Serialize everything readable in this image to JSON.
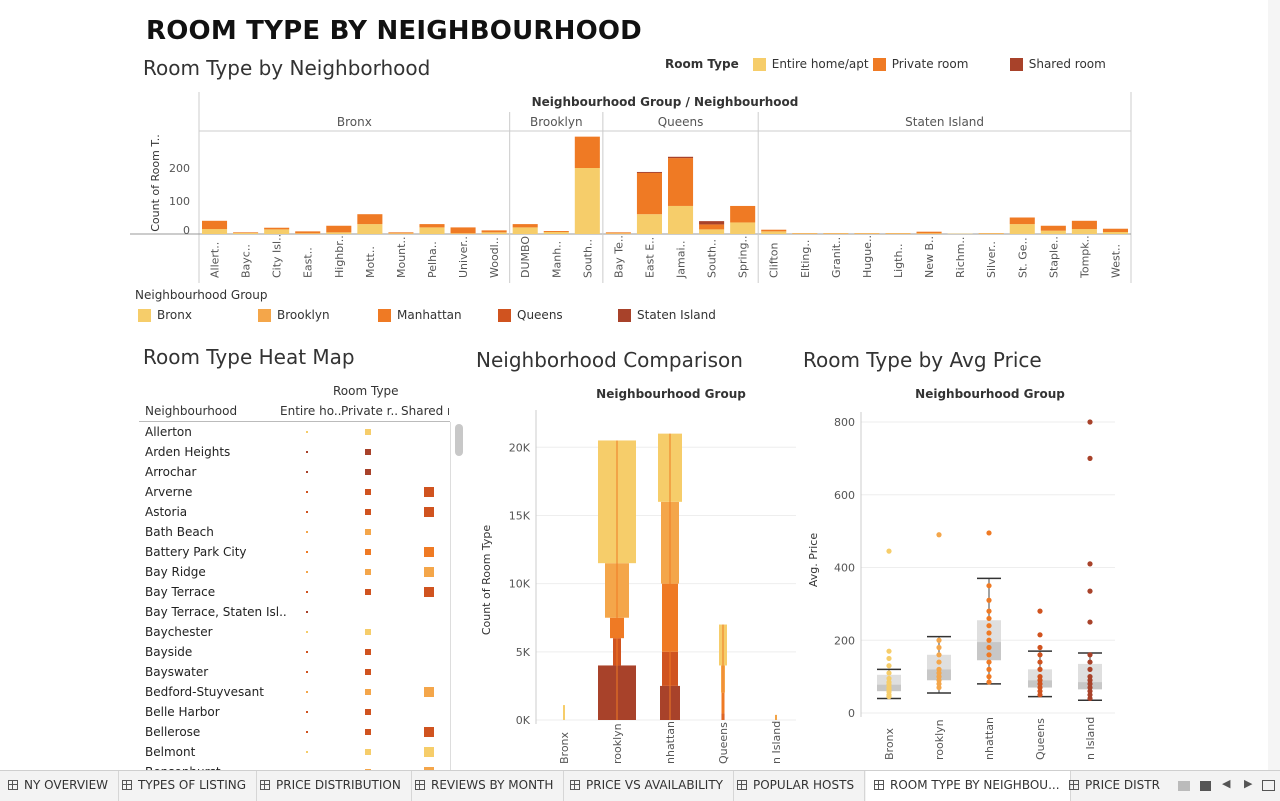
{
  "dashboard": {
    "title": "ROOM TYPE BY NEIGHBOURHOOD"
  },
  "bar_section": {
    "title": "Room Type by Neighborhood",
    "legend_title": "Room Type",
    "legend_items": [
      {
        "label": "Entire home/apt",
        "color": "#f6cd6a"
      },
      {
        "label": "Private room",
        "color": "#ef7a24"
      },
      {
        "label": "Shared room",
        "color": "#a8422a"
      }
    ],
    "header": "Neighbourhood Group  /  Neighbourhood"
  },
  "group_legend": {
    "title": "Neighbourhood Group",
    "items": [
      {
        "label": "Bronx",
        "color": "#f6cd6a"
      },
      {
        "label": "Brooklyn",
        "color": "#f4a64a"
      },
      {
        "label": "Manhattan",
        "color": "#ef7a24"
      },
      {
        "label": "Queens",
        "color": "#d0531f"
      },
      {
        "label": "Staten Island",
        "color": "#a8422a"
      }
    ]
  },
  "heatmap": {
    "title": "Room Type Heat Map",
    "col_header": "Room Type",
    "row_header": "Neighbourhood",
    "columns": [
      "Entire ho..",
      "Private r..",
      "Shared r"
    ],
    "rows": [
      {
        "name": "Allerton",
        "marks": [
          [
            "dot",
            "#f6cd6a"
          ],
          [
            "sq",
            "#f6cd6a"
          ],
          null
        ]
      },
      {
        "name": "Arden Heights",
        "marks": [
          [
            "dot",
            "#a8422a"
          ],
          [
            "sq",
            "#a8422a"
          ],
          null
        ]
      },
      {
        "name": "Arrochar",
        "marks": [
          [
            "dot",
            "#a8422a"
          ],
          [
            "sq",
            "#a8422a"
          ],
          null
        ]
      },
      {
        "name": "Arverne",
        "marks": [
          [
            "dot",
            "#d0531f"
          ],
          [
            "sq",
            "#d0531f"
          ],
          [
            "big",
            "#d0531f"
          ]
        ]
      },
      {
        "name": "Astoria",
        "marks": [
          [
            "dot",
            "#d0531f"
          ],
          [
            "sq",
            "#d0531f"
          ],
          [
            "big",
            "#d0531f"
          ]
        ]
      },
      {
        "name": "Bath Beach",
        "marks": [
          [
            "dot",
            "#f4a64a"
          ],
          [
            "sq",
            "#f4a64a"
          ],
          null
        ]
      },
      {
        "name": "Battery Park City",
        "marks": [
          [
            "dot",
            "#ef7a24"
          ],
          [
            "sq",
            "#ef7a24"
          ],
          [
            "big",
            "#ef7a24"
          ]
        ]
      },
      {
        "name": "Bay Ridge",
        "marks": [
          [
            "dot",
            "#f4a64a"
          ],
          [
            "sq",
            "#f4a64a"
          ],
          [
            "big",
            "#f4a64a"
          ]
        ]
      },
      {
        "name": "Bay Terrace",
        "marks": [
          [
            "dot",
            "#d0531f"
          ],
          [
            "sq",
            "#d0531f"
          ],
          [
            "big",
            "#d0531f"
          ]
        ]
      },
      {
        "name": "Bay Terrace, Staten Isl..",
        "marks": [
          [
            "dot",
            "#a8422a"
          ],
          null,
          null
        ]
      },
      {
        "name": "Baychester",
        "marks": [
          [
            "dot",
            "#f6cd6a"
          ],
          [
            "sq",
            "#f6cd6a"
          ],
          null
        ]
      },
      {
        "name": "Bayside",
        "marks": [
          [
            "dot",
            "#d0531f"
          ],
          [
            "sq",
            "#d0531f"
          ],
          null
        ]
      },
      {
        "name": "Bayswater",
        "marks": [
          [
            "dot",
            "#d0531f"
          ],
          [
            "sq",
            "#d0531f"
          ],
          null
        ]
      },
      {
        "name": "Bedford-Stuyvesant",
        "marks": [
          [
            "dot",
            "#f4a64a"
          ],
          [
            "sq",
            "#f4a64a"
          ],
          [
            "big",
            "#f4a64a"
          ]
        ]
      },
      {
        "name": "Belle Harbor",
        "marks": [
          [
            "dot",
            "#d0531f"
          ],
          [
            "sq",
            "#d0531f"
          ],
          null
        ]
      },
      {
        "name": "Bellerose",
        "marks": [
          [
            "dot",
            "#d0531f"
          ],
          [
            "sq",
            "#d0531f"
          ],
          [
            "big",
            "#d0531f"
          ]
        ]
      },
      {
        "name": "Belmont",
        "marks": [
          [
            "dot",
            "#f6cd6a"
          ],
          [
            "sq",
            "#f6cd6a"
          ],
          [
            "big",
            "#f6cd6a"
          ]
        ]
      },
      {
        "name": "Bensonhurst",
        "marks": [
          [
            "dot",
            "#f4a64a"
          ],
          [
            "sq",
            "#f4a64a"
          ],
          [
            "big",
            "#f4a64a"
          ]
        ]
      }
    ]
  },
  "comparison": {
    "title": "Neighborhood Comparison",
    "header": "Neighbourhood Group"
  },
  "avg_price": {
    "title": "Room Type by Avg Price",
    "header": "Neighbourhood Group"
  },
  "chart_data": [
    {
      "type": "bar",
      "title": "",
      "ylabel": "Count of Room T..",
      "ylim": [
        0,
        300
      ],
      "yticks": [
        0,
        100,
        200
      ],
      "stacked": true,
      "groups": [
        {
          "name": "Bronx",
          "categories": [
            "Allert..",
            "Bayc..",
            "City Isl..",
            "East..",
            "Highbr..",
            "Mott..",
            "Mount..",
            "Pelha..",
            "Univer..",
            "Woodl.."
          ]
        },
        {
          "name": "Brooklyn",
          "categories": [
            "DUMBO",
            "Manh..",
            "South.."
          ]
        },
        {
          "name": "Queens",
          "categories": [
            "Bay Te..",
            "East E..",
            "Jamai..",
            "South..",
            "Spring.."
          ]
        },
        {
          "name": "Staten Island",
          "categories": [
            "Clifton",
            "Elting..",
            "Granit..",
            "Hugue..",
            "Ligth..",
            "New B..",
            "Richm..",
            "Silver..",
            "St. Ge..",
            "Staple..",
            "Tompk..",
            "West.."
          ]
        }
      ],
      "series": [
        {
          "name": "Entire home/apt",
          "color": "#f6cd6a",
          "values": [
            15,
            3,
            14,
            2,
            5,
            30,
            2,
            20,
            2,
            5,
            20,
            6,
            200,
            2,
            60,
            85,
            14,
            35,
            8,
            2,
            2,
            2,
            2,
            2,
            1,
            2,
            30,
            10,
            15,
            6
          ]
        },
        {
          "name": "Private room",
          "color": "#ef7a24",
          "values": [
            25,
            2,
            5,
            6,
            20,
            30,
            3,
            10,
            18,
            6,
            10,
            3,
            95,
            3,
            125,
            145,
            15,
            50,
            5,
            1,
            1,
            1,
            1,
            5,
            0,
            1,
            20,
            15,
            25,
            10
          ]
        },
        {
          "name": "Shared room",
          "color": "#a8422a",
          "values": [
            0,
            0,
            0,
            0,
            0,
            0,
            0,
            0,
            0,
            0,
            0,
            0,
            0,
            0,
            3,
            4,
            10,
            0,
            0,
            0,
            0,
            0,
            0,
            0,
            0,
            0,
            0,
            0,
            0,
            0
          ]
        }
      ]
    },
    {
      "type": "bar",
      "title": "",
      "ylabel": "Count of Room Type",
      "ylim": [
        0,
        22000
      ],
      "yticks": [
        "0K",
        "5K",
        "10K",
        "15K",
        "20K"
      ],
      "categories": [
        "Bronx",
        "Brooklyn",
        "Manhattan",
        "Queens",
        "Staten Island"
      ],
      "category_labels": [
        "Bronx",
        "rooklyn",
        "nhattan",
        "Queens",
        "n Island"
      ],
      "series": [
        {
          "name": "Bronx",
          "color": "#f6cd6a",
          "values": [
            1091,
            9000,
            5000,
            3000,
            373
          ]
        },
        {
          "name": "Brooklyn",
          "color": "#f4a64a",
          "values": [
            0,
            4000,
            6000,
            2000,
            0
          ]
        },
        {
          "name": "Manhattan",
          "color": "#ef7a24",
          "values": [
            0,
            1500,
            5000,
            1500,
            0
          ]
        },
        {
          "name": "Queens",
          "color": "#d0531f",
          "values": [
            0,
            2000,
            2500,
            500,
            0
          ]
        },
        {
          "name": "Staten Island",
          "color": "#a8422a",
          "values": [
            0,
            4000,
            2500,
            0,
            0
          ]
        }
      ]
    },
    {
      "type": "scatter",
      "title": "",
      "ylabel": "Avg. Price",
      "ylim": [
        0,
        800
      ],
      "yticks": [
        0,
        200,
        400,
        600,
        800
      ],
      "categories": [
        "Bronx",
        "Brooklyn",
        "Manhattan",
        "Queens",
        "Staten Island"
      ],
      "category_labels": [
        "Bronx",
        "rooklyn",
        "nhattan",
        "Queens",
        "n Island"
      ],
      "boxes": [
        {
          "min": 40,
          "q1": 60,
          "median": 78,
          "q3": 105,
          "max": 120,
          "color": "#f6cd6a",
          "points": [
            445,
            170,
            150,
            130,
            110,
            95,
            85,
            78,
            70,
            65,
            58,
            50,
            45
          ]
        },
        {
          "min": 55,
          "q1": 90,
          "median": 120,
          "q3": 160,
          "max": 210,
          "color": "#f4a64a",
          "points": [
            490,
            200,
            180,
            160,
            140,
            120,
            110,
            100,
            90,
            80,
            70
          ]
        },
        {
          "min": 80,
          "q1": 145,
          "median": 195,
          "q3": 255,
          "max": 370,
          "color": "#ef7a24",
          "points": [
            495,
            350,
            310,
            280,
            260,
            240,
            220,
            200,
            180,
            160,
            140,
            120,
            100,
            85
          ]
        },
        {
          "min": 45,
          "q1": 70,
          "median": 90,
          "q3": 120,
          "max": 170,
          "color": "#d0531f",
          "points": [
            280,
            215,
            180,
            160,
            140,
            120,
            100,
            90,
            80,
            70,
            60,
            50
          ]
        },
        {
          "min": 35,
          "q1": 65,
          "median": 85,
          "q3": 135,
          "max": 165,
          "color": "#a8422a",
          "points": [
            800,
            700,
            410,
            335,
            250,
            160,
            140,
            120,
            100,
            90,
            80,
            70,
            60,
            50,
            40
          ]
        }
      ]
    }
  ],
  "tabs": [
    {
      "label": "NY OVERVIEW",
      "active": false
    },
    {
      "label": "TYPES OF LISTING",
      "active": false
    },
    {
      "label": "PRICE DISTRIBUTION",
      "active": false
    },
    {
      "label": "REVIEWS BY MONTH",
      "active": false
    },
    {
      "label": "PRICE VS AVAILABILITY",
      "active": false
    },
    {
      "label": "POPULAR HOSTS",
      "active": false
    },
    {
      "label": "ROOM TYPE BY NEIGHBOU...",
      "active": true
    },
    {
      "label": "PRICE DISTR",
      "active": false
    }
  ]
}
